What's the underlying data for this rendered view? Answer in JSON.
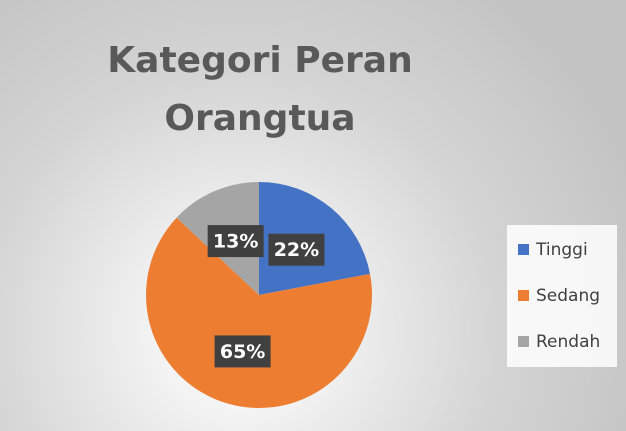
{
  "chart_data": {
    "type": "pie",
    "title": "Kategori Peran Orangtua",
    "categories": [
      "Tinggi",
      "Sedang",
      "Rendah"
    ],
    "values": [
      22,
      65,
      13
    ],
    "value_labels": [
      "22%",
      "65%",
      "13%"
    ],
    "colors": [
      "#4472c4",
      "#ed7d31",
      "#a5a5a5"
    ],
    "legend": "right"
  }
}
